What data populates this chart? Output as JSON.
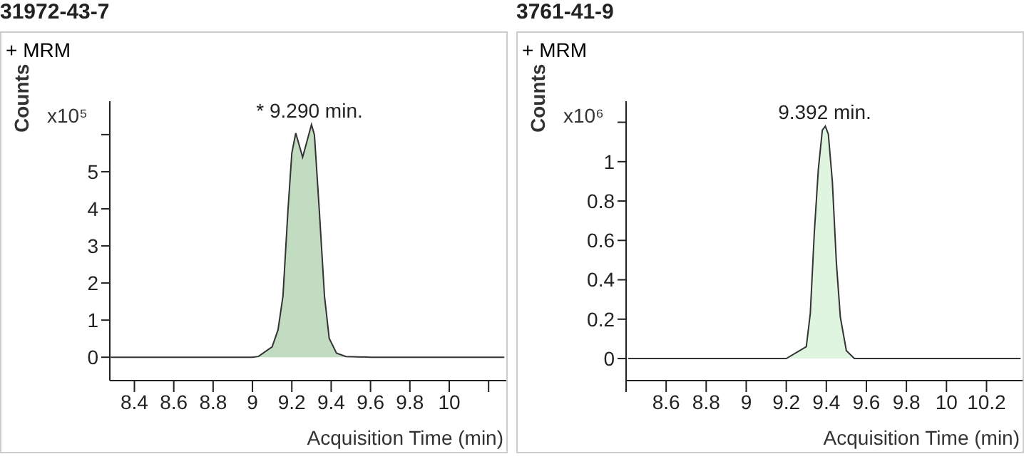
{
  "chart_data": [
    {
      "type": "area",
      "title": "31972-43-7",
      "subtitle": "+ MRM",
      "xlabel": "Acquisition Time (min)",
      "ylabel": "Counts",
      "annotations": [
        "x10⁵",
        {
          "text": "* 9.290 min.",
          "x": 9.29,
          "y": 6.27
        }
      ],
      "x": [
        8.28,
        9.0,
        9.03,
        9.1,
        9.13,
        9.155,
        9.18,
        9.2,
        9.22,
        9.255,
        9.3,
        9.315,
        9.34,
        9.366,
        9.39,
        9.427,
        9.475,
        9.6,
        10.28
      ],
      "values": [
        0,
        0,
        0.02,
        0.28,
        0.74,
        1.65,
        3.93,
        5.5,
        6.04,
        5.39,
        6.27,
        5.99,
        3.93,
        1.65,
        0.51,
        0.11,
        0.02,
        0,
        0
      ],
      "color": "#c2dcc2",
      "xlim": [
        8.275,
        10.29
      ],
      "ylim": [
        -0.63,
        6.9
      ],
      "xticks": [
        8.4,
        8.6,
        8.8,
        9,
        9.2,
        9.4,
        9.6,
        9.8,
        10,
        {
          "value": 10.2,
          "label": null
        }
      ],
      "yticks": [
        0,
        1,
        2,
        3,
        4,
        5,
        {
          "value": 6,
          "label": null
        }
      ]
    },
    {
      "type": "area",
      "title": "3761-41-9",
      "subtitle": "+ MRM",
      "xlabel": "Acquisition Time (min)",
      "ylabel": "Counts",
      "annotations": [
        "x10⁶",
        {
          "text": "9.392 min.",
          "x": 9.392,
          "y": 1.18
        }
      ],
      "x": [
        8.41,
        9.2,
        9.3,
        9.32,
        9.34,
        9.36,
        9.38,
        9.395,
        9.41,
        9.43,
        9.45,
        9.47,
        9.5,
        9.54,
        10.37
      ],
      "values": [
        0,
        0,
        0.06,
        0.23,
        0.64,
        0.96,
        1.16,
        1.18,
        1.14,
        0.9,
        0.49,
        0.21,
        0.04,
        0,
        0
      ],
      "color": "#e0f5e0",
      "xlim": [
        8.4,
        10.38
      ],
      "ylim": [
        -0.112,
        1.307
      ],
      "xticks": [
        {
          "value": 8.4,
          "label": null
        },
        8.6,
        8.8,
        9,
        9.2,
        9.4,
        9.6,
        9.8,
        10,
        10.2
      ],
      "yticks": [
        0,
        0.2,
        0.4,
        0.6,
        0.8,
        1,
        {
          "value": 1.2,
          "label": null
        }
      ]
    }
  ]
}
